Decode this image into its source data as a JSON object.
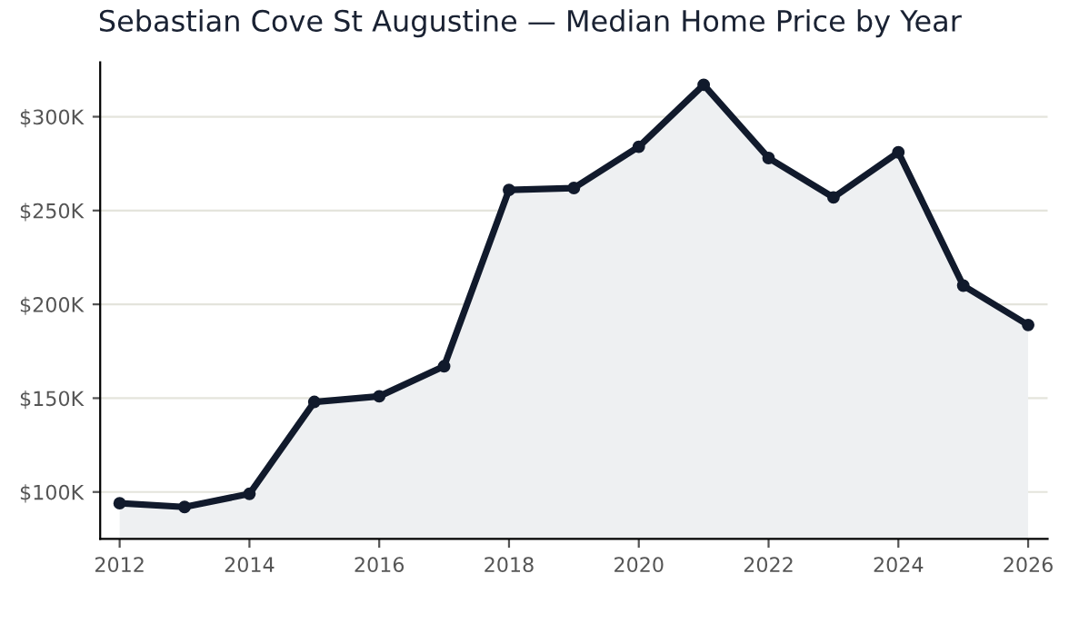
{
  "chart_data": {
    "type": "area",
    "title": "Sebastian Cove St Augustine — Median Home Price by Year",
    "x": [
      2012,
      2013,
      2014,
      2015,
      2016,
      2017,
      2018,
      2019,
      2020,
      2021,
      2022,
      2023,
      2024,
      2025,
      2026
    ],
    "series": [
      {
        "color": "#111a2c",
        "values": [
          94000,
          92000,
          99000,
          148000,
          151000,
          167000,
          261000,
          262000,
          284000,
          317000,
          278000,
          257000,
          281000,
          210000,
          189000
        ]
      }
    ],
    "xlim": [
      2011.7,
      2026.3
    ],
    "xticks": [
      2012,
      2014,
      2016,
      2018,
      2020,
      2022,
      2024,
      2026
    ],
    "ylim": [
      75000,
      329000
    ],
    "yticks": [
      {
        "value": 100000,
        "label": "$100K"
      },
      {
        "value": 150000,
        "label": "$150K"
      },
      {
        "value": 200000,
        "label": "$200K"
      },
      {
        "value": 250000,
        "label": "$250K"
      },
      {
        "value": 300000,
        "label": "$300K"
      }
    ],
    "grid": "y",
    "marker": "circle",
    "line_style": "solid"
  }
}
